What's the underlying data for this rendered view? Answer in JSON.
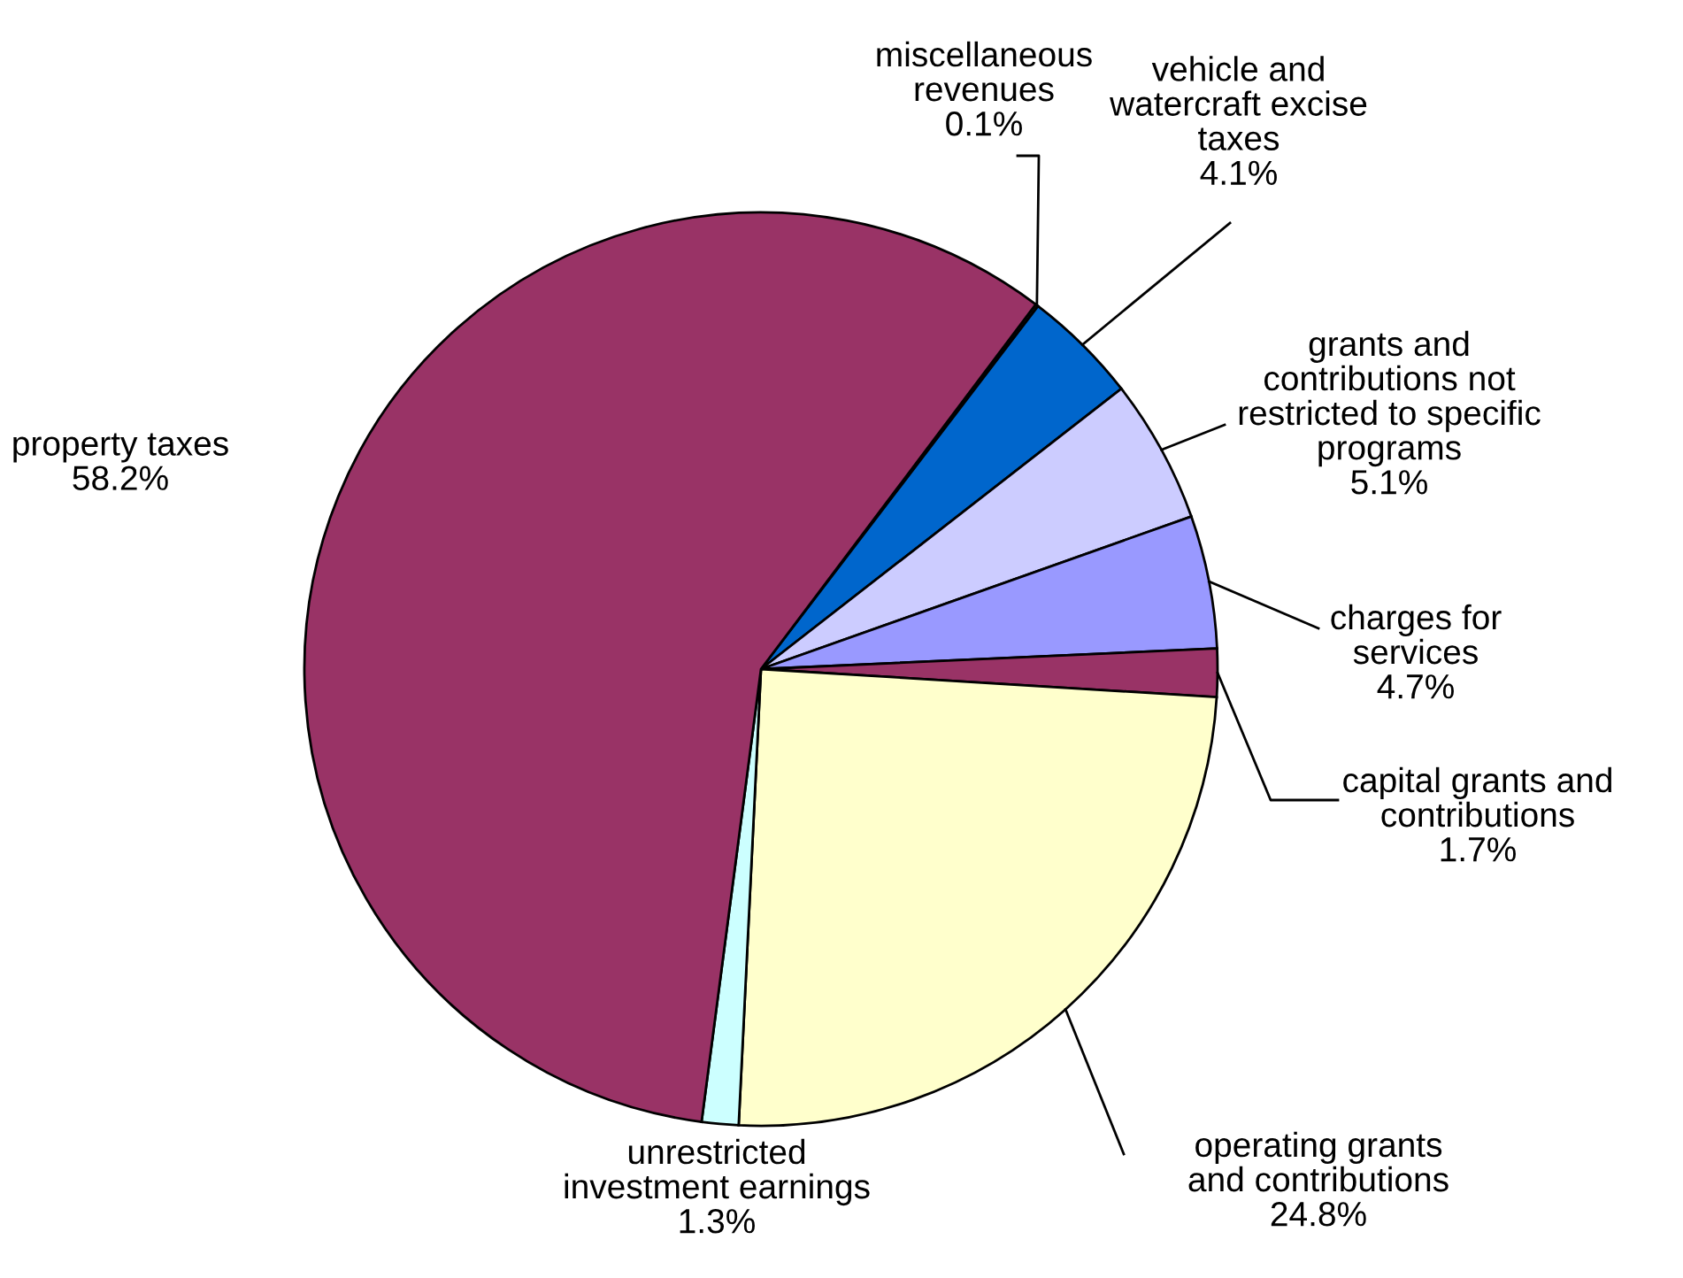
{
  "chart_data": {
    "type": "pie",
    "categories": [
      "miscellaneous\nrevenues",
      "vehicle and\nwatercraft excise\ntaxes",
      "grants and\ncontributions not\nrestricted to specific\nprograms",
      "charges for\nservices",
      "capital grants and\ncontributions",
      "operating grants\nand contributions",
      "unrestricted\ninvestment earnings",
      "property taxes"
    ],
    "values": [
      0.1,
      4.1,
      5.1,
      4.7,
      1.7,
      24.8,
      1.3,
      58.2
    ],
    "value_labels": [
      "0.1%",
      "4.1%",
      "5.1%",
      "4.7%",
      "1.7%",
      "24.8%",
      "1.3%",
      "58.2%"
    ],
    "colors": [
      "#333333",
      "#0066cc",
      "#ccccff",
      "#9999ff",
      "#993366",
      "#ffffcc",
      "#ccffff",
      "#993366"
    ]
  }
}
